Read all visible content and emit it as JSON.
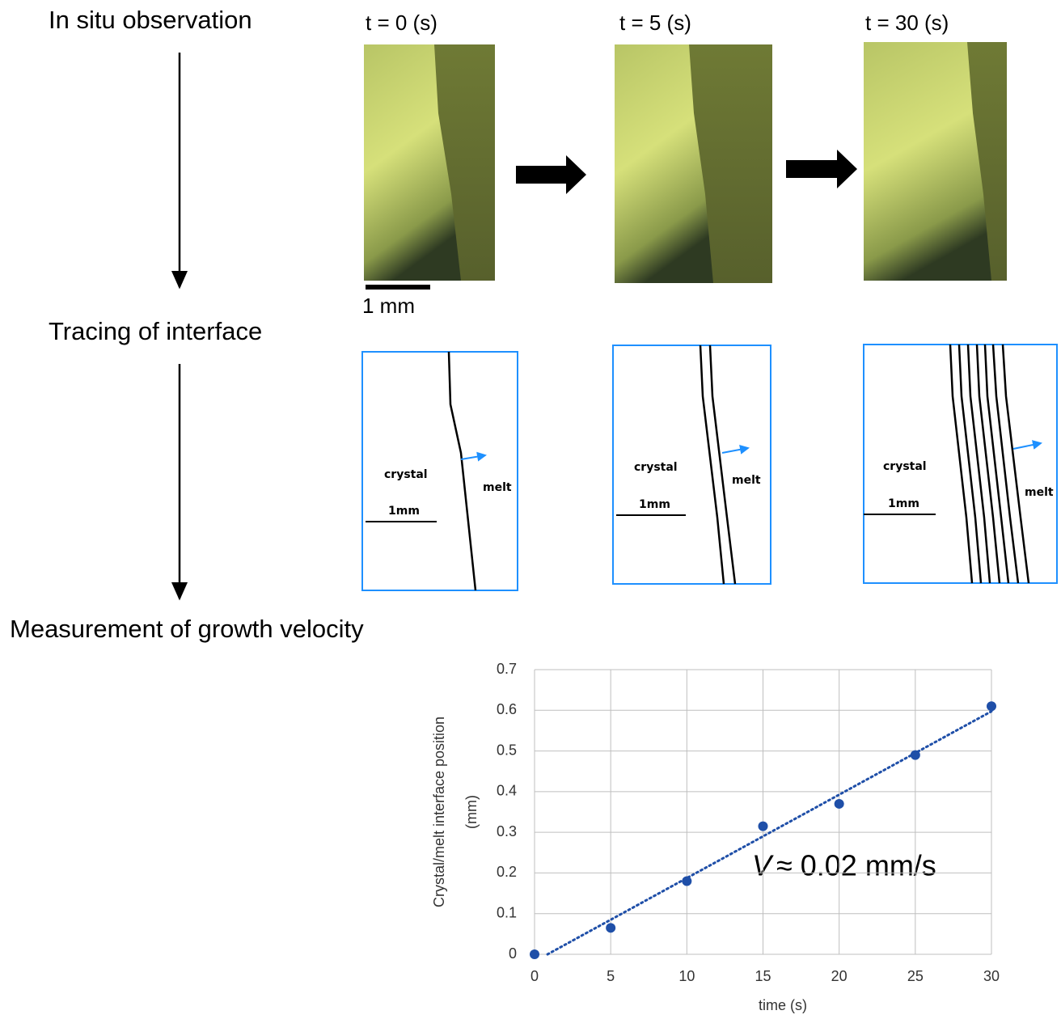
{
  "steps": [
    "In situ observation",
    "Tracing of interface",
    "Measurement of growth velocity"
  ],
  "observation": {
    "times": [
      "t = 0 (s)",
      "t = 5 (s)",
      "t = 30 (s)"
    ],
    "scale_label": "1 mm"
  },
  "tracing": {
    "panels": [
      {
        "left": "crystal",
        "right": "melt",
        "scale": "1mm"
      },
      {
        "left": "crystal",
        "right": "melt",
        "scale": "1mm"
      },
      {
        "left": "crystal",
        "right": "melt",
        "scale": "1mm"
      }
    ]
  },
  "chart_data": {
    "type": "scatter",
    "xlabel": "time (s)",
    "ylabel": [
      "Crystal/melt interface position",
      "(mm)"
    ],
    "annotation": [
      "V",
      "≈ 0.02 mm/s"
    ],
    "x": [
      0,
      5,
      10,
      15,
      20,
      25,
      30
    ],
    "series": [
      {
        "color": "#1f4fa8",
        "values": [
          0,
          0.065,
          0.18,
          0.315,
          0.37,
          0.49,
          0.61
        ]
      }
    ],
    "trendline": true,
    "xlim": [
      0,
      30
    ],
    "ylim": [
      0,
      0.7
    ],
    "xticks": [
      0,
      5,
      10,
      15,
      20,
      25,
      30
    ],
    "yticks": [
      0,
      0.1,
      0.2,
      0.3,
      0.4,
      0.5,
      0.6,
      0.7
    ],
    "grid": true
  }
}
